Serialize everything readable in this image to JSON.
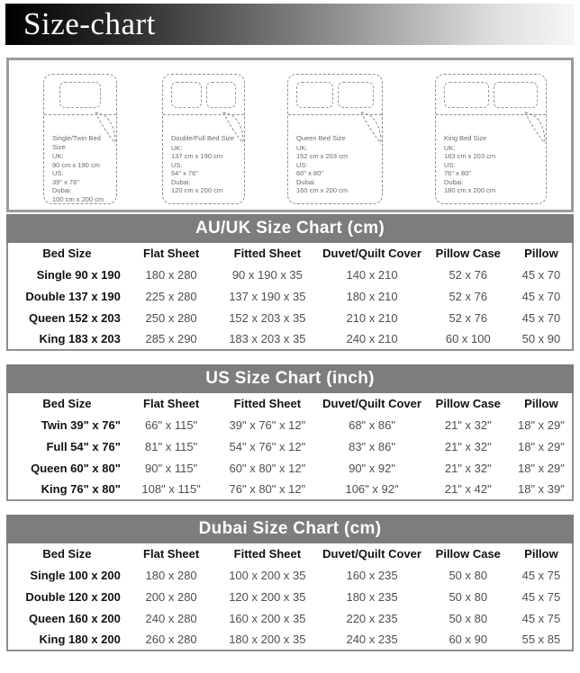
{
  "title": "Size-chart",
  "colors": {
    "title_gradient_start": "#000000",
    "title_gradient_end": "#f7f7f7",
    "table_bar_gray": "#7d7d7d",
    "border_gray": "#8f8f8f",
    "cell_text": "#4f4f4f",
    "bed_line_gray": "#8f8f8f"
  },
  "beds": [
    {
      "name": "Single/Twin Bed Size",
      "uk_label": "UK:",
      "uk": "90 cm x 190 cm",
      "us_label": "US:",
      "us": "39\" x 76\"",
      "dubai_label": "Dubai:",
      "dubai": "100 cm x 200 cm"
    },
    {
      "name": "Double/Full Bed Size",
      "uk_label": "UK:",
      "uk": "137 cm x 190 cm",
      "us_label": "US:",
      "us": "54\" x 76\"",
      "dubai_label": "Dubai:",
      "dubai": "120 cm x 200 cm"
    },
    {
      "name": "Queen Bed Size",
      "uk_label": "UK:",
      "uk": "152 cm x 203 cm",
      "us_label": "US:",
      "us": "60\" x 80\"",
      "dubai_label": "Dubai:",
      "dubai": "160 cm x 200 cm"
    },
    {
      "name": "King Bed Size",
      "uk_label": "UK:",
      "uk": "183 cm x 203 cm",
      "us_label": "US:",
      "us": "76\" x 80\"",
      "dubai_label": "Dubai:",
      "dubai": "180 cm x 200 cm"
    }
  ],
  "tables": [
    {
      "title": "AU/UK Size Chart (cm)",
      "columns": [
        "Bed Size",
        "Flat Sheet",
        "Fitted Sheet",
        "Duvet/Quilt Cover",
        "Pillow Case",
        "Pillow"
      ],
      "rows": [
        [
          "Single 90 x 190",
          "180 x 280",
          "90 x 190 x 35",
          "140 x 210",
          "52 x 76",
          "45 x 70"
        ],
        [
          "Double 137 x 190",
          "225 x 280",
          "137 x 190 x 35",
          "180 x 210",
          "52 x 76",
          "45 x 70"
        ],
        [
          "Queen 152 x 203",
          "250 x 280",
          "152 x 203 x 35",
          "210 x 210",
          "52 x 76",
          "45 x 70"
        ],
        [
          "King 183 x 203",
          "285 x 290",
          "183 x 203 x 35",
          "240 x 210",
          "60 x 100",
          "50 x 90"
        ]
      ]
    },
    {
      "title": "US Size Chart (inch)",
      "columns": [
        "Bed Size",
        "Flat Sheet",
        "Fitted Sheet",
        "Duvet/Quilt Cover",
        "Pillow Case",
        "Pillow"
      ],
      "rows": [
        [
          "Twin 39\" x 76\"",
          "66\" x 115\"",
          "39\" x 76\" x 12\"",
          "68\" x 86\"",
          "21\" x 32\"",
          "18\" x 29\""
        ],
        [
          "Full 54\" x 76\"",
          "81\" x 115\"",
          "54\" x 76\" x 12\"",
          "83\" x 86\"",
          "21\" x 32\"",
          "18\" x 29\""
        ],
        [
          "Queen 60\" x 80\"",
          "90\" x 115\"",
          "60\" x 80\" x 12\"",
          "90\" x 92\"",
          "21\" x 32\"",
          "18\" x 29\""
        ],
        [
          "King 76\" x 80\"",
          "108\" x 115\"",
          "76\" x 80\" x 12\"",
          "106\" x 92\"",
          "21\" x 42\"",
          "18\" x 39\""
        ]
      ]
    },
    {
      "title": "Dubai Size Chart (cm)",
      "columns": [
        "Bed Size",
        "Flat Sheet",
        "Fitted Sheet",
        "Duvet/Quilt Cover",
        "Pillow Case",
        "Pillow"
      ],
      "rows": [
        [
          "Single 100 x 200",
          "180 x 280",
          "100 x 200 x 35",
          "160 x 235",
          "50 x 80",
          "45 x 75"
        ],
        [
          "Double 120 x 200",
          "200 x 280",
          "120 x 200 x 35",
          "180 x 235",
          "50 x 80",
          "45 x 75"
        ],
        [
          "Queen 160 x 200",
          "240 x 280",
          "160 x 200 x 35",
          "220 x 235",
          "50 x 80",
          "45 x 75"
        ],
        [
          "King 180 x 200",
          "260 x 280",
          "180 x 200 x 35",
          "240 x 235",
          "60 x 90",
          "55 x 85"
        ]
      ]
    }
  ]
}
